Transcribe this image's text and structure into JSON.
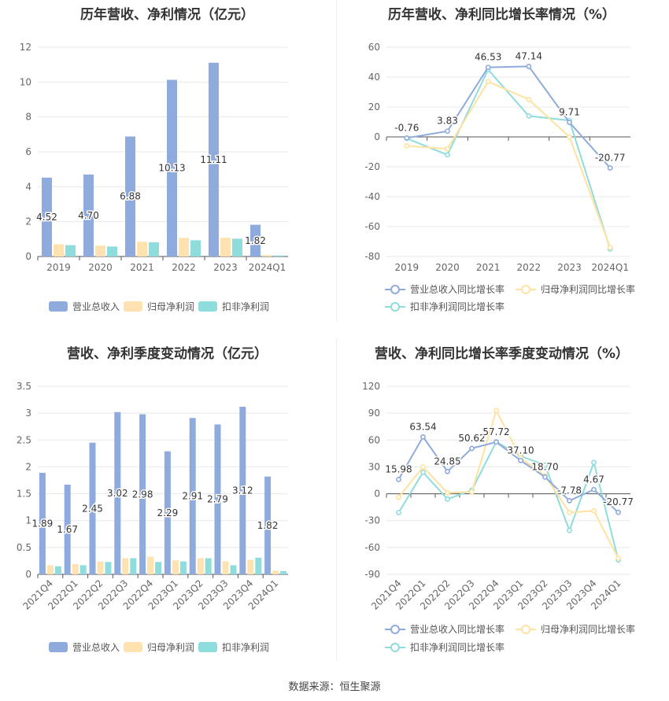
{
  "source": "数据来源：恒生聚源",
  "chart_data": [
    {
      "type": "bar",
      "title": "历年营收、净利情况（亿元）",
      "categories": [
        "2019",
        "2020",
        "2021",
        "2022",
        "2023",
        "2024Q1"
      ],
      "ylim": [
        0,
        12
      ],
      "yticks": [
        0,
        2,
        4,
        6,
        8,
        10,
        12
      ],
      "series": [
        {
          "name": "营业总收入",
          "color": "#8faadc",
          "values": [
            4.52,
            4.7,
            6.88,
            10.13,
            11.11,
            1.82
          ],
          "labels": [
            "4.52",
            "4.70",
            "6.88",
            "10.13",
            "11.11",
            "1.82"
          ]
        },
        {
          "name": "归母净利润",
          "color": "#ffe2b0",
          "values": [
            0.7,
            0.62,
            0.85,
            1.07,
            1.07,
            0.08
          ]
        },
        {
          "name": "扣非净利润",
          "color": "#8fdcdc",
          "values": [
            0.65,
            0.57,
            0.82,
            0.93,
            1.02,
            0.06
          ]
        }
      ]
    },
    {
      "type": "line",
      "title": "历年营收、净利同比增长率情况（%）",
      "categories": [
        "2019",
        "2020",
        "2021",
        "2022",
        "2023",
        "2024Q1"
      ],
      "ylim": [
        -80,
        60
      ],
      "yticks": [
        -80,
        -60,
        -40,
        -20,
        0,
        20,
        40,
        60
      ],
      "series": [
        {
          "name": "营业总收入同比增长率",
          "color": "#8faadc",
          "values": [
            -0.76,
            3.83,
            46.53,
            47.14,
            9.71,
            -20.77
          ],
          "labels": [
            "-0.76",
            "3.83",
            "46.53",
            "47.14",
            "9.71",
            "-20.77"
          ]
        },
        {
          "name": "归母净利润同比增长率",
          "color": "#ffe2a0",
          "values": [
            -6,
            -8,
            37,
            25,
            0,
            -74
          ]
        },
        {
          "name": "扣非净利润同比增长率",
          "color": "#8fdcdc",
          "values": [
            -1,
            -12,
            45,
            14,
            11,
            -75
          ]
        }
      ]
    },
    {
      "type": "bar",
      "title": "营收、净利季度变动情况（亿元）",
      "categories": [
        "2021Q4",
        "2022Q1",
        "2022Q2",
        "2022Q3",
        "2022Q4",
        "2023Q1",
        "2023Q2",
        "2023Q3",
        "2023Q4",
        "2024Q1"
      ],
      "ylim": [
        0,
        3.5
      ],
      "yticks": [
        0,
        0.5,
        1,
        1.5,
        2,
        2.5,
        3,
        3.5
      ],
      "series": [
        {
          "name": "营业总收入",
          "color": "#8faadc",
          "values": [
            1.89,
            1.67,
            2.45,
            3.02,
            2.98,
            2.29,
            2.91,
            2.79,
            3.12,
            1.82
          ],
          "labels": [
            "1.89",
            "1.67",
            "2.45",
            "3.02",
            "2.98",
            "2.29",
            "2.91",
            "2.79",
            "3.12",
            "1.82"
          ]
        },
        {
          "name": "归母净利润",
          "color": "#ffe2b0",
          "values": [
            0.17,
            0.19,
            0.24,
            0.3,
            0.33,
            0.26,
            0.3,
            0.24,
            0.27,
            0.07
          ]
        },
        {
          "name": "扣非净利润",
          "color": "#8fdcdc",
          "values": [
            0.15,
            0.17,
            0.23,
            0.3,
            0.23,
            0.24,
            0.3,
            0.17,
            0.31,
            0.06
          ]
        }
      ]
    },
    {
      "type": "line",
      "title": "营收、净利同比增长率季度变动情况（%）",
      "categories": [
        "2021Q4",
        "2022Q1",
        "2022Q2",
        "2022Q3",
        "2022Q4",
        "2023Q1",
        "2023Q2",
        "2023Q3",
        "2023Q4",
        "2024Q1"
      ],
      "ylim": [
        -90,
        120
      ],
      "yticks": [
        -90,
        -60,
        -30,
        0,
        30,
        60,
        90,
        120
      ],
      "series": [
        {
          "name": "营业总收入同比增长率",
          "color": "#8faadc",
          "values": [
            15.98,
            63.54,
            24.85,
            50.62,
            57.72,
            37.1,
            18.7,
            -7.78,
            4.67,
            -20.77
          ],
          "labels": [
            "15.98",
            "63.54",
            "24.85",
            "50.62",
            "57.72",
            "37.10",
            "18.70",
            "-7.78",
            "4.67",
            "-20.77"
          ]
        },
        {
          "name": "归母净利润同比增长率",
          "color": "#ffe2a0",
          "values": [
            -4,
            30,
            1,
            2,
            93,
            40,
            20,
            -21,
            -19,
            -72
          ]
        },
        {
          "name": "扣非净利润同比增长率",
          "color": "#8fdcdc",
          "values": [
            -21,
            24,
            -6,
            4,
            58,
            42,
            32,
            -41,
            35,
            -74
          ]
        }
      ]
    }
  ]
}
